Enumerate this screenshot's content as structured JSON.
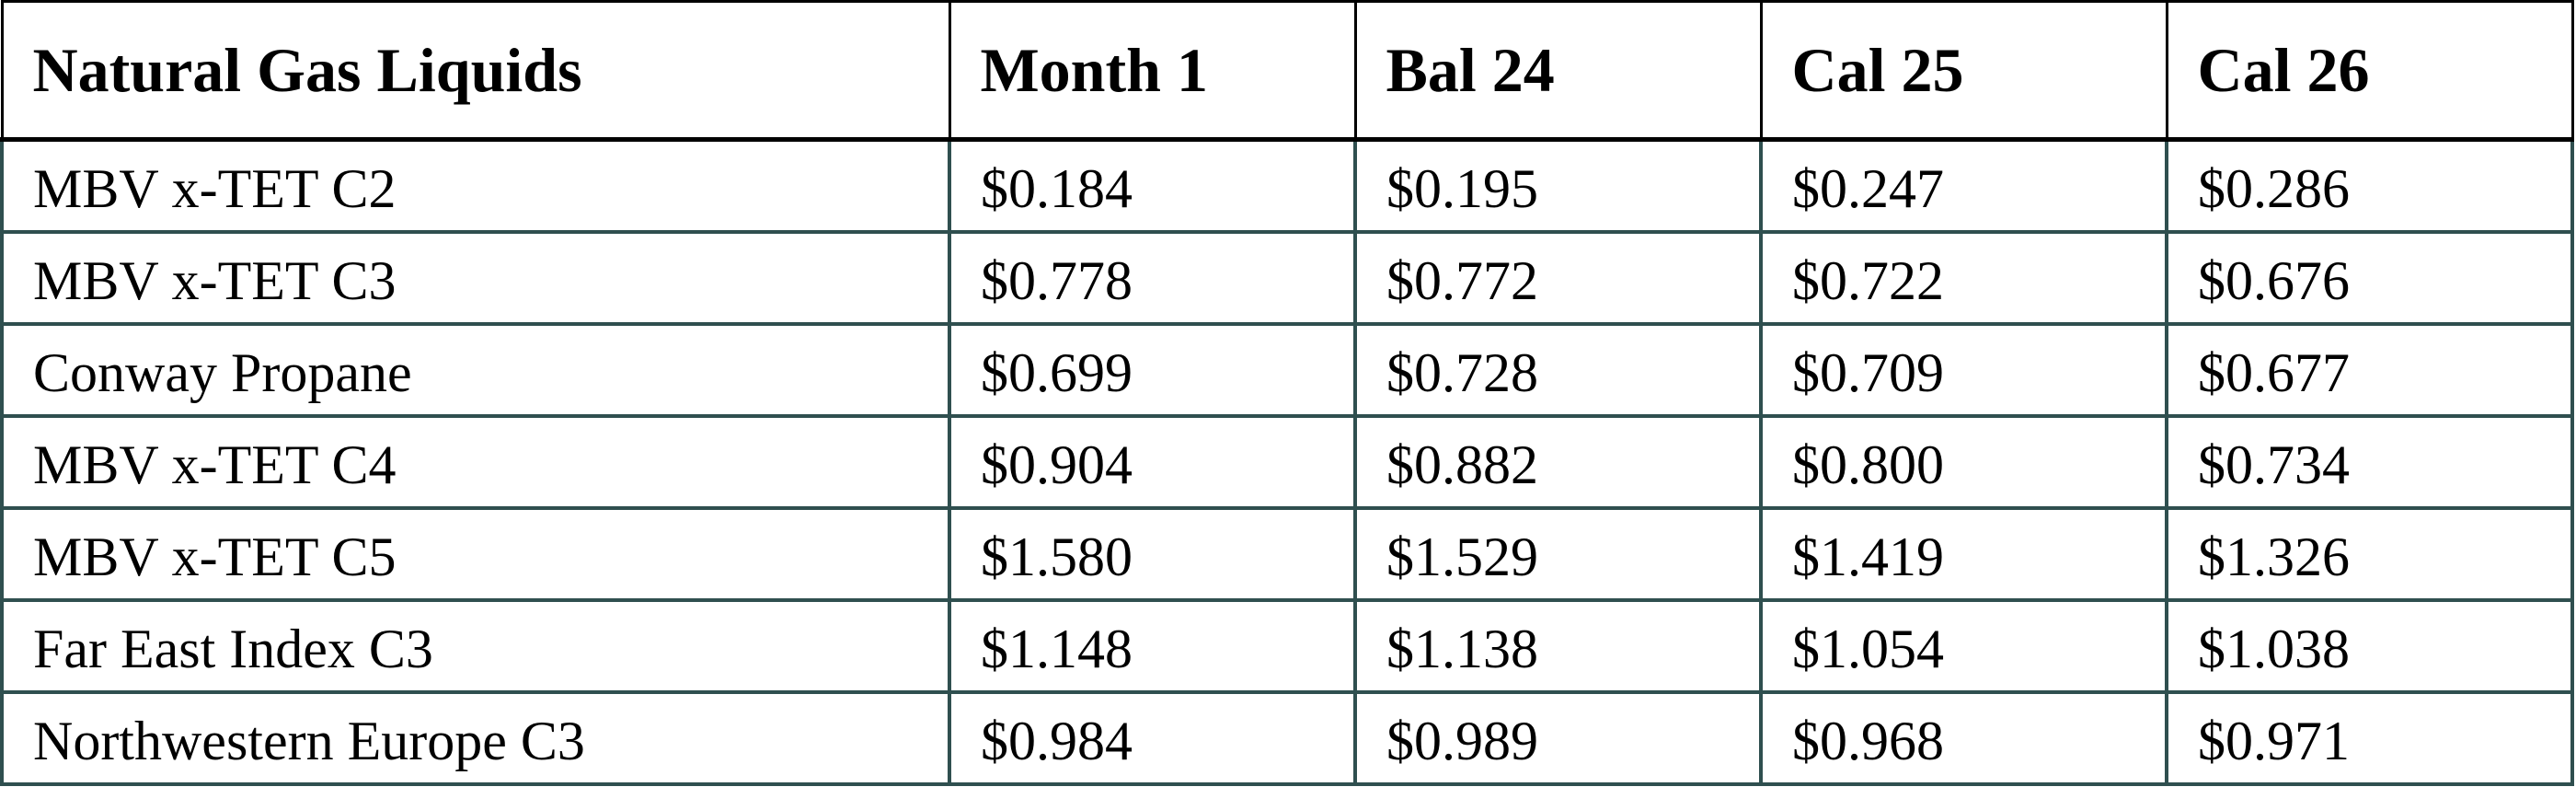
{
  "table": {
    "headers": [
      "Natural Gas Liquids",
      "Month 1",
      "Bal 24",
      "Cal 25",
      "Cal 26"
    ],
    "rows": [
      [
        "MBV x-TET C2",
        "$0.184",
        "$0.195",
        "$0.247",
        "$0.286"
      ],
      [
        "MBV x-TET C3",
        "$0.778",
        "$0.772",
        "$0.722",
        "$0.676"
      ],
      [
        "Conway Propane",
        "$0.699",
        "$0.728",
        "$0.709",
        "$0.677"
      ],
      [
        "MBV x-TET C4",
        "$0.904",
        "$0.882",
        "$0.800",
        "$0.734"
      ],
      [
        "MBV x-TET C5",
        "$1.580",
        "$1.529",
        "$1.419",
        "$1.326"
      ],
      [
        "Far East Index C3",
        "$1.148",
        "$1.138",
        "$1.054",
        "$1.038"
      ],
      [
        "Northwestern Europe C3",
        "$0.984",
        "$0.989",
        "$0.968",
        "$0.971"
      ]
    ]
  },
  "colors": {
    "header_border": "#000000",
    "body_border": "#2f4f4f"
  }
}
